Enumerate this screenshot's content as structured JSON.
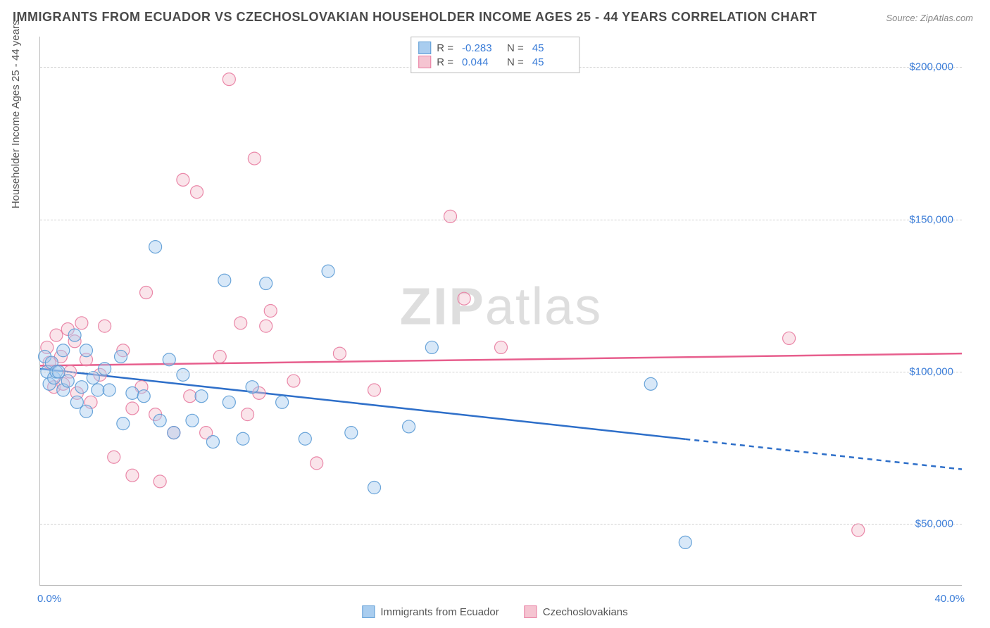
{
  "title": "IMMIGRANTS FROM ECUADOR VS CZECHOSLOVAKIAN HOUSEHOLDER INCOME AGES 25 - 44 YEARS CORRELATION CHART",
  "source": "Source: ZipAtlas.com",
  "watermark_bold": "ZIP",
  "watermark_rest": "atlas",
  "ylabel": "Householder Income Ages 25 - 44 years",
  "chart": {
    "type": "scatter",
    "xlim": [
      0,
      40
    ],
    "ylim": [
      30000,
      210000
    ],
    "xtick_labels": {
      "min": "0.0%",
      "max": "40.0%"
    },
    "ytick_values": [
      50000,
      100000,
      150000,
      200000
    ],
    "ytick_labels": [
      "$50,000",
      "$100,000",
      "$150,000",
      "$200,000"
    ],
    "grid_color": "#d0d0d0",
    "background_color": "#ffffff",
    "marker_radius": 9,
    "marker_opacity": 0.45,
    "marker_stroke_opacity": 0.9,
    "line_width": 2.5,
    "series": [
      {
        "name": "Immigrants from Ecuador",
        "color_fill": "#a9cdef",
        "color_stroke": "#5b9bd5",
        "line_color": "#2e6fc9",
        "R": "-0.283",
        "N": "45",
        "trend": {
          "x1": 0,
          "y1": 101000,
          "x2": 40,
          "y2": 68000,
          "solid_until_x": 28
        },
        "points": [
          [
            0.2,
            105000
          ],
          [
            0.3,
            100000
          ],
          [
            0.4,
            96000
          ],
          [
            0.5,
            103000
          ],
          [
            0.6,
            98000
          ],
          [
            0.7,
            100000
          ],
          [
            0.8,
            100000
          ],
          [
            1.0,
            107000
          ],
          [
            1.0,
            94000
          ],
          [
            1.2,
            97000
          ],
          [
            1.5,
            112000
          ],
          [
            1.6,
            90000
          ],
          [
            1.8,
            95000
          ],
          [
            2.0,
            107000
          ],
          [
            2.0,
            87000
          ],
          [
            2.3,
            98000
          ],
          [
            2.5,
            94000
          ],
          [
            2.8,
            101000
          ],
          [
            3.0,
            94000
          ],
          [
            3.5,
            105000
          ],
          [
            3.6,
            83000
          ],
          [
            4.0,
            93000
          ],
          [
            4.5,
            92000
          ],
          [
            5.0,
            141000
          ],
          [
            5.2,
            84000
          ],
          [
            5.6,
            104000
          ],
          [
            5.8,
            80000
          ],
          [
            6.2,
            99000
          ],
          [
            6.6,
            84000
          ],
          [
            7.0,
            92000
          ],
          [
            7.5,
            77000
          ],
          [
            8.0,
            130000
          ],
          [
            8.2,
            90000
          ],
          [
            8.8,
            78000
          ],
          [
            9.2,
            95000
          ],
          [
            9.8,
            129000
          ],
          [
            10.5,
            90000
          ],
          [
            11.5,
            78000
          ],
          [
            12.5,
            133000
          ],
          [
            13.5,
            80000
          ],
          [
            14.5,
            62000
          ],
          [
            16.0,
            82000
          ],
          [
            17.0,
            108000
          ],
          [
            26.5,
            96000
          ],
          [
            28.0,
            44000
          ]
        ]
      },
      {
        "name": "Czechoslovakians",
        "color_fill": "#f5c4d1",
        "color_stroke": "#e87ba0",
        "line_color": "#e75e8d",
        "R": "0.044",
        "N": "45",
        "trend": {
          "x1": 0,
          "y1": 102000,
          "x2": 40,
          "y2": 106000,
          "solid_until_x": 40
        },
        "points": [
          [
            0.3,
            108000
          ],
          [
            0.4,
            103000
          ],
          [
            0.6,
            95000
          ],
          [
            0.7,
            112000
          ],
          [
            0.9,
            105000
          ],
          [
            1.0,
            96000
          ],
          [
            1.2,
            114000
          ],
          [
            1.3,
            100000
          ],
          [
            1.5,
            110000
          ],
          [
            1.6,
            93000
          ],
          [
            1.8,
            116000
          ],
          [
            2.0,
            104000
          ],
          [
            2.2,
            90000
          ],
          [
            2.6,
            99000
          ],
          [
            2.8,
            115000
          ],
          [
            3.2,
            72000
          ],
          [
            3.6,
            107000
          ],
          [
            4.0,
            88000
          ],
          [
            4.0,
            66000
          ],
          [
            4.4,
            95000
          ],
          [
            4.6,
            126000
          ],
          [
            5.0,
            86000
          ],
          [
            5.2,
            64000
          ],
          [
            5.8,
            80000
          ],
          [
            6.2,
            163000
          ],
          [
            6.5,
            92000
          ],
          [
            6.8,
            159000
          ],
          [
            7.2,
            80000
          ],
          [
            7.8,
            105000
          ],
          [
            8.2,
            196000
          ],
          [
            8.7,
            116000
          ],
          [
            9.0,
            86000
          ],
          [
            9.3,
            170000
          ],
          [
            9.5,
            93000
          ],
          [
            9.8,
            115000
          ],
          [
            10.0,
            120000
          ],
          [
            11.0,
            97000
          ],
          [
            12.0,
            70000
          ],
          [
            13.0,
            106000
          ],
          [
            14.5,
            94000
          ],
          [
            17.8,
            151000
          ],
          [
            18.4,
            124000
          ],
          [
            20.0,
            108000
          ],
          [
            32.5,
            111000
          ],
          [
            35.5,
            48000
          ]
        ]
      }
    ]
  },
  "legend_top": {
    "R_label": "R =",
    "N_label": "N ="
  },
  "legend_bottom": {
    "items": [
      "Immigrants from Ecuador",
      "Czechoslovakians"
    ]
  },
  "colors": {
    "title": "#4a4a4a",
    "tick": "#3b7dd8",
    "axis": "#bbbbbb"
  }
}
